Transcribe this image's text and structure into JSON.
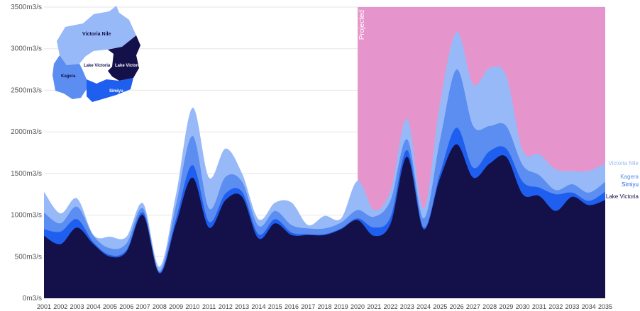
{
  "chart_data": {
    "type": "area",
    "stacked": true,
    "x": [
      "2001",
      "2002",
      "2003",
      "2004",
      "2005",
      "2006",
      "2007",
      "2008",
      "2009",
      "2010",
      "2011",
      "2012",
      "2013",
      "2014",
      "2015",
      "2016",
      "2017",
      "2018",
      "2019",
      "2020",
      "2021",
      "2022",
      "2023",
      "2024",
      "2025",
      "2026",
      "2027",
      "2028",
      "2029",
      "2030",
      "2031",
      "2032",
      "2033",
      "2034",
      "2035"
    ],
    "yticks": [
      "0m3/s",
      "500m3/s",
      "1000m3/s",
      "1500m3/s",
      "2000m3/s",
      "2500m3/s",
      "3000m3/s",
      "3500m3/s"
    ],
    "ylim": [
      0,
      3500
    ],
    "projected_label": "Projected",
    "projected_range": [
      "2020",
      "2035"
    ],
    "series": [
      {
        "name": "Lake Victoria",
        "color": "#14114a",
        "values": [
          750,
          650,
          850,
          650,
          500,
          560,
          1000,
          300,
          900,
          1450,
          850,
          1180,
          1220,
          720,
          900,
          760,
          760,
          760,
          830,
          940,
          750,
          900,
          1700,
          830,
          1450,
          1850,
          1450,
          1620,
          1700,
          1250,
          1230,
          1050,
          1220,
          1120,
          1180
        ]
      },
      {
        "name": "Simiyu",
        "color": "#1f5ff0",
        "values": [
          80,
          150,
          100,
          20,
          20,
          20,
          30,
          10,
          60,
          150,
          70,
          80,
          60,
          50,
          50,
          30,
          10,
          10,
          10,
          20,
          100,
          80,
          80,
          20,
          60,
          200,
          120,
          150,
          100,
          150,
          100,
          200,
          50,
          50,
          100
        ]
      },
      {
        "name": "Kagera",
        "color": "#5b8ef0",
        "values": [
          200,
          100,
          150,
          80,
          80,
          80,
          50,
          20,
          160,
          350,
          160,
          200,
          120,
          100,
          100,
          90,
          70,
          70,
          70,
          100,
          130,
          200,
          130,
          110,
          400,
          700,
          500,
          300,
          270,
          200,
          150,
          50,
          100,
          100,
          120
        ]
      },
      {
        "name": "Victoria Nile",
        "color": "#98b9f7",
        "values": [
          250,
          120,
          100,
          10,
          140,
          80,
          60,
          50,
          130,
          340,
          370,
          340,
          100,
          80,
          100,
          270,
          40,
          150,
          50,
          350,
          80,
          120,
          250,
          120,
          450,
          450,
          500,
          700,
          600,
          180,
          250,
          250,
          160,
          260,
          220
        ]
      }
    ],
    "annotations": {
      "map": {
        "regions": [
          "Victoria Nile",
          "Lake Victoria",
          "Lake Victoria",
          "Kagera",
          "Simiyu"
        ]
      }
    }
  },
  "colors": {
    "projected_band": "#e595cc",
    "background": "#ffffff"
  }
}
